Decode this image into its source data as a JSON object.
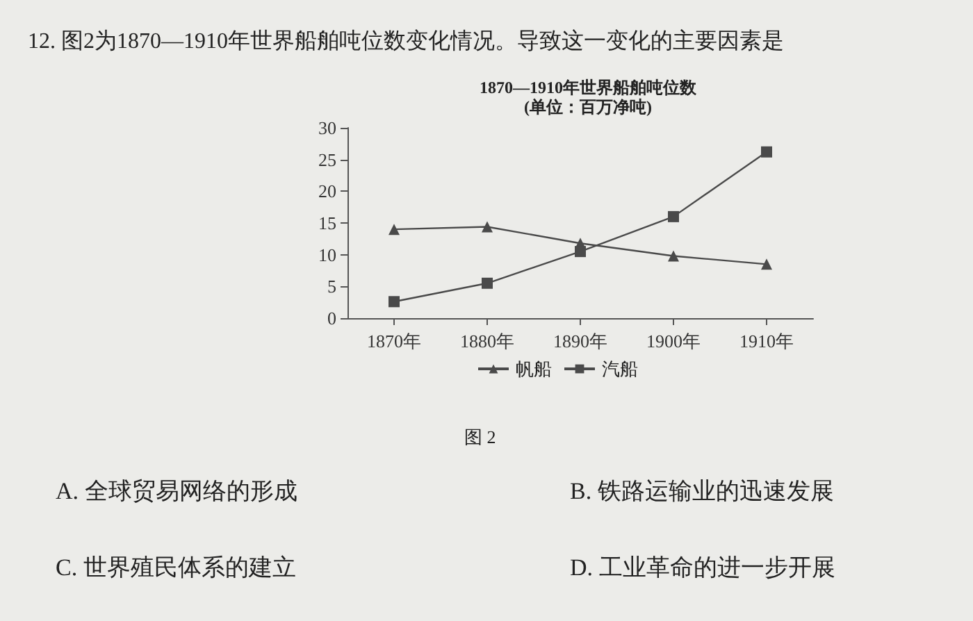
{
  "chart_data": {
    "type": "line",
    "title": "1870—1910年世界船舶吨位数",
    "subtitle": "(单位：百万净吨)",
    "categories": [
      "1870年",
      "1880年",
      "1890年",
      "1900年",
      "1910年"
    ],
    "series": [
      {
        "name": "帆船",
        "color": "#4a4a4a",
        "marker": "triangle",
        "values": [
          14,
          14.4,
          11.8,
          9.8,
          8.5
        ]
      },
      {
        "name": "汽船",
        "color": "#4a4a4a",
        "marker": "square",
        "values": [
          2.6,
          5.5,
          10.5,
          16,
          26.2
        ]
      }
    ],
    "ylim": [
      0,
      30
    ],
    "yticks": [
      0,
      5,
      10,
      15,
      20,
      25,
      30
    ],
    "grid": false,
    "legend": "bottom",
    "line_style": "solid",
    "annotations": [
      "12. 图2为1870—1910年世界船舶吨位数变化情况。导致这一变化的主要因素是",
      "图 2",
      "A. 全球贸易网络的形成",
      "B. 铁路运输业的迅速发展",
      "C. 世界殖民体系的建立",
      "D. 工业革命的进一步开展"
    ]
  }
}
